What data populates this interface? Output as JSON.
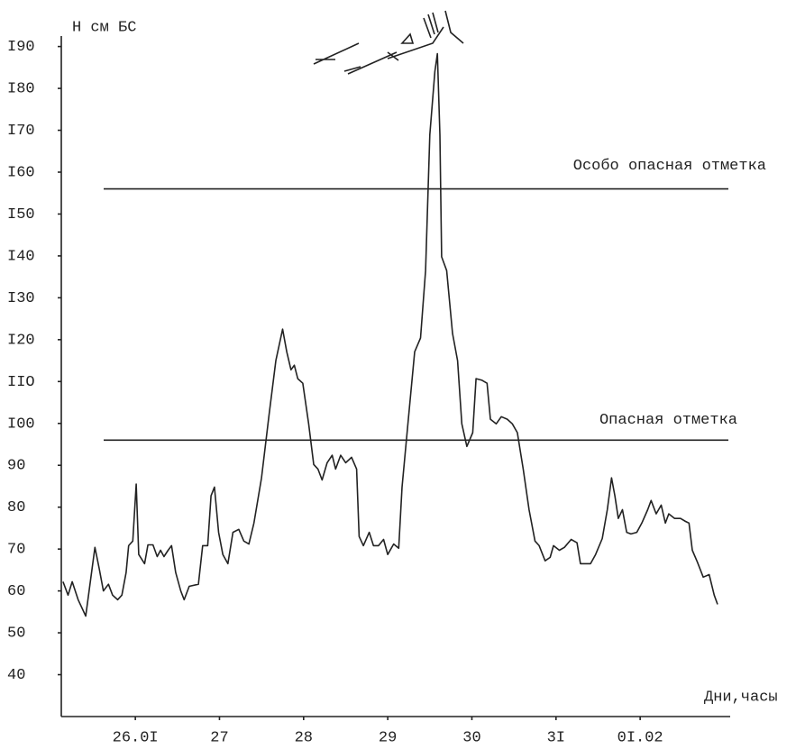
{
  "chart_data": {
    "type": "line",
    "y_label": "Н см БС",
    "x_label": "Дни,часы",
    "color": "#222222",
    "ylim": [
      30,
      192.5
    ],
    "yticks": [
      40,
      50,
      60,
      70,
      80,
      90,
      {
        "value": 100,
        "label": "I00"
      },
      {
        "value": 110,
        "label": "IIO"
      },
      {
        "value": 120,
        "label": "I20"
      },
      {
        "value": 130,
        "label": "I30"
      },
      {
        "value": 140,
        "label": "I40"
      },
      {
        "value": 150,
        "label": "I50"
      },
      {
        "value": 160,
        "label": "I60"
      },
      {
        "value": 170,
        "label": "I70"
      },
      {
        "value": 180,
        "label": "I80"
      },
      {
        "value": 190,
        "label": "I90"
      }
    ],
    "xlim": [
      25.12,
      33.07
    ],
    "xticks": [
      {
        "value": 26,
        "label": "26.0I"
      },
      27,
      28,
      29,
      30,
      {
        "value": 31,
        "label": "3I"
      },
      {
        "value": 32,
        "label": "0I.02"
      }
    ],
    "reference_lines": [
      {
        "label": "Особо опасная отметка",
        "value": 156
      },
      {
        "label": "Опасная отметка",
        "value": 96
      }
    ],
    "x": [
      25.14,
      25.2,
      25.25,
      25.32,
      25.41,
      25.52,
      25.57,
      25.62,
      25.68,
      25.73,
      25.79,
      25.84,
      25.89,
      25.92,
      25.97,
      26.01,
      26.04,
      26.11,
      26.15,
      26.21,
      26.26,
      26.3,
      26.34,
      26.39,
      26.43,
      26.48,
      26.54,
      26.58,
      26.64,
      26.75,
      26.8,
      26.86,
      26.9,
      26.94,
      26.99,
      27.04,
      27.1,
      27.16,
      27.23,
      27.29,
      27.35,
      27.41,
      27.5,
      27.59,
      27.67,
      27.75,
      27.8,
      27.85,
      27.89,
      27.93,
      27.99,
      28.06,
      28.12,
      28.17,
      28.22,
      28.28,
      28.34,
      28.38,
      28.44,
      28.5,
      28.57,
      28.63,
      28.66,
      28.71,
      28.78,
      28.83,
      28.89,
      28.95,
      29.0,
      29.07,
      29.13,
      29.17,
      29.24,
      29.32,
      29.39,
      29.45,
      29.5,
      29.56,
      29.59,
      29.62,
      29.64,
      29.7,
      29.77,
      29.83,
      29.88,
      29.94,
      30.01,
      30.05,
      30.12,
      30.18,
      30.22,
      30.29,
      30.35,
      30.42,
      30.48,
      30.54,
      30.61,
      30.68,
      30.75,
      30.8,
      30.87,
      30.93,
      30.97,
      31.04,
      31.1,
      31.18,
      31.25,
      31.29,
      31.41,
      31.47,
      31.55,
      31.61,
      31.66,
      31.7,
      31.74,
      31.79,
      31.84,
      31.89,
      31.96,
      32.02,
      32.09,
      32.13,
      32.19,
      32.25,
      32.3,
      32.34,
      32.41,
      32.48,
      32.54,
      32.58,
      32.62,
      32.68,
      32.75,
      32.82,
      32.88,
      32.92
    ],
    "values": [
      62.2,
      59.0,
      62.2,
      57.9,
      54.0,
      70.4,
      65.4,
      60.0,
      61.6,
      59.0,
      57.9,
      59.0,
      64.4,
      70.8,
      71.9,
      85.5,
      68.7,
      66.5,
      71.0,
      71.0,
      68.2,
      69.7,
      68.2,
      69.7,
      70.8,
      64.4,
      60.0,
      57.9,
      61.1,
      61.6,
      70.8,
      70.8,
      82.7,
      84.8,
      74.0,
      68.7,
      66.5,
      74.0,
      74.7,
      71.9,
      71.2,
      76.2,
      87.0,
      102.1,
      115.0,
      122.5,
      117.1,
      112.8,
      113.9,
      110.7,
      109.6,
      99.9,
      90.2,
      89.1,
      86.5,
      90.6,
      92.4,
      89.1,
      92.4,
      90.6,
      91.9,
      89.1,
      73.0,
      70.8,
      74.0,
      70.8,
      70.8,
      72.3,
      68.7,
      71.2,
      70.2,
      84.8,
      99.9,
      117.1,
      120.4,
      136.5,
      168.9,
      184.0,
      188.3,
      168.9,
      139.8,
      136.5,
      121.5,
      115.0,
      99.9,
      94.5,
      97.8,
      110.7,
      110.3,
      109.6,
      101.0,
      99.9,
      101.6,
      101.0,
      99.9,
      97.8,
      89.1,
      79.4,
      71.9,
      70.8,
      67.2,
      68.0,
      70.8,
      69.7,
      70.4,
      72.3,
      71.5,
      66.5,
      66.5,
      68.7,
      72.5,
      79.4,
      87.0,
      82.7,
      77.3,
      79.4,
      74.0,
      73.6,
      74.0,
      76.2,
      79.4,
      81.6,
      78.4,
      80.5,
      76.2,
      78.4,
      77.3,
      77.3,
      76.6,
      76.2,
      69.7,
      66.9,
      63.3,
      63.9,
      59.0,
      56.8
    ]
  }
}
